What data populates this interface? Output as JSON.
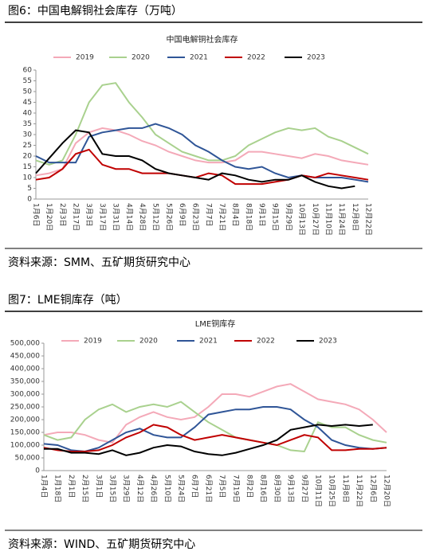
{
  "figures": [
    {
      "title": "图6：中国电解铜社会库存（万吨）",
      "source": "资料来源：SMM、五矿期货研究中心"
    },
    {
      "title": "图7：LME铜库存（吨）",
      "source": "资料来源：WIND、五矿期货研究中心"
    }
  ],
  "chart_data": [
    {
      "type": "line",
      "title": "中国电解铜社会库存",
      "categories": [
        "1月6日",
        "1月20日",
        "2月3日",
        "2月17日",
        "3月3日",
        "3月17日",
        "3月31日",
        "4月14日",
        "4月28日",
        "5月12日",
        "5月26日",
        "6月9日",
        "6月23日",
        "7月7日",
        "7月21日",
        "8月4日",
        "8月18日",
        "9月1日",
        "9月15日",
        "9月29日",
        "10月13日",
        "10月27日",
        "11月10日",
        "11月24日",
        "12月8日",
        "12月22日"
      ],
      "ylim": [
        0,
        60
      ],
      "yticks": [
        0,
        5,
        10,
        15,
        20,
        25,
        30,
        35,
        40,
        45,
        50,
        55,
        60
      ],
      "legend": "top",
      "series": [
        {
          "name": "2019",
          "color": "#f4a9b8",
          "values": [
            11,
            12,
            14,
            26,
            31,
            33,
            32,
            30,
            27,
            25,
            22,
            20,
            18,
            17,
            17,
            18,
            22,
            22,
            21,
            20,
            19,
            21,
            20,
            18,
            17,
            16
          ]
        },
        {
          "name": "2020",
          "color": "#a9d18e",
          "values": [
            18,
            16,
            18,
            30,
            45,
            53,
            54,
            45,
            38,
            30,
            26,
            22,
            20,
            18,
            18,
            20,
            25,
            28,
            31,
            33,
            32,
            33,
            29,
            27,
            24,
            21
          ]
        },
        {
          "name": "2021",
          "color": "#2f5597",
          "values": [
            20,
            17,
            17,
            17,
            29,
            31,
            32,
            33,
            33,
            35,
            33,
            30,
            25,
            22,
            18,
            15,
            14,
            15,
            12,
            10,
            11,
            10,
            10,
            10,
            9,
            8
          ]
        },
        {
          "name": "2022",
          "color": "#c00000",
          "values": [
            9,
            10,
            14,
            21,
            23,
            16,
            14,
            14,
            12,
            12,
            12,
            11,
            10,
            12,
            11,
            7,
            7,
            7,
            8,
            9,
            11,
            10,
            12,
            11,
            10,
            9
          ]
        },
        {
          "name": "2023",
          "color": "#000000",
          "values": [
            12,
            19,
            26,
            32,
            31,
            21,
            20,
            20,
            18,
            14,
            12,
            11,
            10,
            9,
            12,
            11,
            9,
            8,
            9,
            9,
            11,
            8,
            6,
            5,
            6,
            null
          ]
        }
      ]
    },
    {
      "type": "line",
      "title": "LME铜库存",
      "categories": [
        "1月4日",
        "1月18日",
        "2月1日",
        "2月15日",
        "3月1日",
        "3月15日",
        "3月29日",
        "4月12日",
        "4月26日",
        "5月10日",
        "5月24日",
        "6月7日",
        "6月21日",
        "7月5日",
        "7月19日",
        "8月2日",
        "8月16日",
        "8月30日",
        "9月13日",
        "9月27日",
        "10月11日",
        "10月25日",
        "11月8日",
        "11月22日",
        "12月6日",
        "12月20日"
      ],
      "ylim": [
        0,
        500000
      ],
      "yticks": [
        0,
        {
          "value": 50000,
          "label": "50,000"
        },
        {
          "value": 100000,
          "label": "100,000"
        },
        {
          "value": 150000,
          "label": "150,000"
        },
        {
          "value": 200000,
          "label": "200,000"
        },
        {
          "value": 250000,
          "label": "250,000"
        },
        {
          "value": 300000,
          "label": "300,000"
        },
        {
          "value": 350000,
          "label": "350,000"
        },
        {
          "value": 400000,
          "label": "400,000"
        },
        {
          "value": 450000,
          "label": "450,000"
        },
        {
          "value": 500000,
          "label": "500,000"
        }
      ],
      "legend": "top",
      "series": [
        {
          "name": "2019",
          "color": "#f4a9b8",
          "values": [
            140000,
            150000,
            150000,
            140000,
            120000,
            110000,
            180000,
            210000,
            230000,
            210000,
            200000,
            210000,
            250000,
            300000,
            300000,
            290000,
            310000,
            330000,
            340000,
            310000,
            280000,
            270000,
            260000,
            240000,
            200000,
            150000
          ]
        },
        {
          "name": "2020",
          "color": "#a9d18e",
          "values": [
            140000,
            120000,
            130000,
            200000,
            240000,
            260000,
            230000,
            250000,
            260000,
            250000,
            270000,
            230000,
            190000,
            160000,
            130000,
            120000,
            110000,
            100000,
            80000,
            75000,
            190000,
            170000,
            170000,
            140000,
            120000,
            110000
          ]
        },
        {
          "name": "2021",
          "color": "#2f5597",
          "values": [
            105000,
            100000,
            80000,
            75000,
            90000,
            120000,
            150000,
            165000,
            140000,
            130000,
            130000,
            170000,
            220000,
            230000,
            240000,
            240000,
            250000,
            250000,
            240000,
            200000,
            170000,
            120000,
            100000,
            90000,
            85000,
            90000
          ]
        },
        {
          "name": "2022",
          "color": "#c00000",
          "values": [
            90000,
            80000,
            75000,
            75000,
            80000,
            100000,
            130000,
            150000,
            180000,
            170000,
            140000,
            120000,
            130000,
            140000,
            130000,
            120000,
            110000,
            100000,
            120000,
            140000,
            130000,
            80000,
            80000,
            85000,
            85000,
            90000
          ]
        },
        {
          "name": "2023",
          "color": "#000000",
          "values": [
            85000,
            85000,
            70000,
            70000,
            65000,
            80000,
            60000,
            70000,
            90000,
            100000,
            95000,
            75000,
            65000,
            60000,
            70000,
            85000,
            100000,
            120000,
            160000,
            170000,
            180000,
            175000,
            180000,
            175000,
            180000,
            null
          ]
        }
      ]
    }
  ]
}
